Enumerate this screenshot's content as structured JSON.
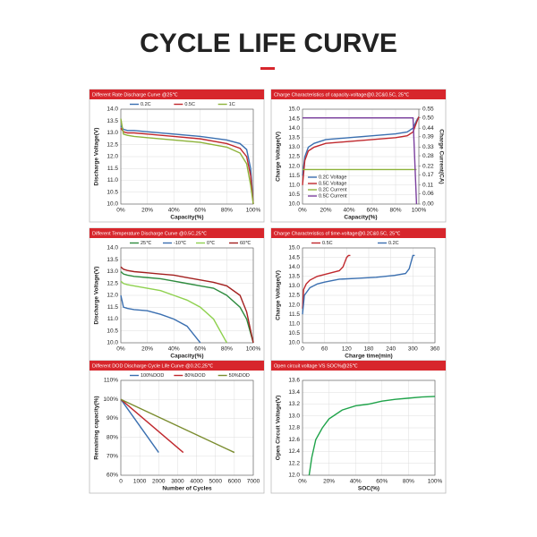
{
  "title": "CYCLE LIFE CURVE",
  "chart_data": [
    {
      "type": "line",
      "title": "Different Rate Discharge Curve @25℃",
      "x_label": "Capacity(%)",
      "y_label": "Discharge Voltage(V)",
      "legend": "top",
      "grid": true,
      "x": [
        0,
        2,
        5,
        10,
        20,
        40,
        60,
        80,
        90,
        95,
        98,
        100
      ],
      "series": [
        {
          "name": "0.2C",
          "color": "#3a6fb0",
          "values": [
            13.3,
            13.15,
            13.1,
            13.1,
            13.05,
            12.95,
            12.85,
            12.7,
            12.55,
            12.3,
            11.5,
            10.0
          ]
        },
        {
          "name": "0.5C",
          "color": "#c0282d",
          "values": [
            13.2,
            13.05,
            13.0,
            13.0,
            12.95,
            12.85,
            12.75,
            12.55,
            12.35,
            12.0,
            11.2,
            10.0
          ]
        },
        {
          "name": "1C",
          "color": "#8db33a",
          "values": [
            13.6,
            12.95,
            12.9,
            12.85,
            12.8,
            12.7,
            12.6,
            12.4,
            12.15,
            11.7,
            10.8,
            10.0
          ]
        }
      ],
      "xlim": [
        0,
        100
      ],
      "xticks": [
        {
          "value": 0,
          "label": "0%"
        },
        {
          "value": 20,
          "label": "20%"
        },
        {
          "value": 40,
          "label": "40%"
        },
        {
          "value": 60,
          "label": "60%"
        },
        {
          "value": 80,
          "label": "80%"
        },
        {
          "value": 100,
          "label": "100%"
        }
      ],
      "ylim": [
        10,
        14
      ],
      "yticks": [
        {
          "value": 10,
          "label": "10.0"
        },
        10.5,
        {
          "value": 11,
          "label": "11.0"
        },
        11.5,
        {
          "value": 12,
          "label": "12.0"
        },
        12.5,
        {
          "value": 13,
          "label": "13.0"
        },
        13.5,
        {
          "value": 14,
          "label": "14.0"
        }
      ]
    },
    {
      "type": "line",
      "title": "Charge  Characteristics of capacity-voltage@0.2C&0.5C, 25℃",
      "x_label": "Capacity(%)",
      "y_label": "Charge Voltage(V)",
      "y2_label": "Charge Current(CA)",
      "legend": "lower left",
      "grid": true,
      "x": [
        0,
        2,
        5,
        10,
        20,
        40,
        60,
        80,
        90,
        95,
        98,
        100
      ],
      "series": [
        {
          "name": "0.2C Voltage",
          "color": "#3a6fb0",
          "values": [
            11.5,
            12.5,
            13.0,
            13.2,
            13.4,
            13.5,
            13.6,
            13.7,
            13.8,
            14.0,
            14.4,
            14.6
          ]
        },
        {
          "name": "0.5C Voltage",
          "color": "#c0282d",
          "values": [
            11.0,
            12.3,
            12.8,
            13.0,
            13.2,
            13.3,
            13.4,
            13.5,
            13.6,
            13.8,
            14.3,
            14.6
          ]
        },
        {
          "name": "0.2C Current",
          "color": "#8db33a",
          "axis": "y2",
          "values": [
            0.2,
            0.2,
            0.2,
            0.2,
            0.2,
            0.2,
            0.2,
            0.2,
            0.2,
            0.2,
            0.2,
            null
          ]
        },
        {
          "name": "0.5C Current",
          "color": "#7b3f9e",
          "axis": "y2",
          "values": [
            0.5,
            0.5,
            0.5,
            0.5,
            0.5,
            0.5,
            0.5,
            0.5,
            0.5,
            0.5,
            0.0,
            null
          ]
        }
      ],
      "xlim": [
        0,
        100
      ],
      "xticks": [
        {
          "value": 0,
          "label": "0%"
        },
        {
          "value": 20,
          "label": "20%"
        },
        {
          "value": 40,
          "label": "40%"
        },
        {
          "value": 60,
          "label": "60%"
        },
        {
          "value": 80,
          "label": "80%"
        },
        {
          "value": 100,
          "label": "100%"
        }
      ],
      "ylim": [
        10,
        15
      ],
      "yticks": [
        {
          "value": 10,
          "label": "10.0"
        },
        10.5,
        {
          "value": 11,
          "label": "11.0"
        },
        11.5,
        {
          "value": 12,
          "label": "12.0"
        },
        12.5,
        {
          "value": 13,
          "label": "13.0"
        },
        13.5,
        {
          "value": 14,
          "label": "14.0"
        },
        14.5,
        {
          "value": 15,
          "label": "15.0"
        }
      ],
      "y2lim": [
        0,
        0.55
      ],
      "y2ticks": [
        {
          "value": 0,
          "label": "0.00"
        },
        0.06,
        0.11,
        0.17,
        0.22,
        0.28,
        0.33,
        0.39,
        0.44,
        {
          "value": 0.5,
          "label": "0.50"
        },
        0.55
      ]
    },
    {
      "type": "line",
      "title": "Different Temperature Discharge Curve @0.5C,25℃",
      "x_label": "Capacity(%)",
      "y_label": "Discharge Voltage(V)",
      "legend": "top",
      "grid": true,
      "x": [
        0,
        2,
        5,
        10,
        20,
        30,
        40,
        50,
        60,
        70,
        80,
        90,
        95,
        100
      ],
      "series": [
        {
          "name": "25℃",
          "color": "#2e8b3e",
          "values": [
            13.0,
            12.9,
            12.85,
            12.8,
            12.75,
            12.7,
            12.6,
            12.5,
            12.4,
            12.3,
            12.0,
            11.5,
            11.0,
            10.0
          ]
        },
        {
          "name": "-10℃",
          "color": "#3a6fb0",
          "values": [
            12.0,
            11.5,
            11.45,
            11.4,
            11.35,
            11.2,
            11.0,
            10.7,
            10.0,
            null,
            null,
            null,
            null,
            null
          ]
        },
        {
          "name": "0℃",
          "color": "#8fd14f",
          "values": [
            12.6,
            12.5,
            12.45,
            12.4,
            12.3,
            12.2,
            12.0,
            11.8,
            11.5,
            11.0,
            10.0,
            null,
            null,
            null
          ]
        },
        {
          "name": "60℃",
          "color": "#a3201f",
          "values": [
            13.2,
            13.1,
            13.05,
            13.0,
            12.95,
            12.9,
            12.85,
            12.75,
            12.65,
            12.55,
            12.4,
            12.0,
            11.3,
            10.0
          ]
        }
      ],
      "xlim": [
        0,
        100
      ],
      "xticks": [
        {
          "value": 0,
          "label": "0%"
        },
        {
          "value": 20,
          "label": "20%"
        },
        {
          "value": 40,
          "label": "40%"
        },
        {
          "value": 60,
          "label": "60%"
        },
        {
          "value": 80,
          "label": "80%"
        },
        {
          "value": 100,
          "label": "100%"
        }
      ],
      "ylim": [
        10,
        14
      ],
      "yticks": [
        {
          "value": 10,
          "label": "10.0"
        },
        10.5,
        {
          "value": 11,
          "label": "11.0"
        },
        11.5,
        {
          "value": 12,
          "label": "12.0"
        },
        12.5,
        {
          "value": 13,
          "label": "13.0"
        },
        13.5,
        {
          "value": 14,
          "label": "14.0"
        }
      ]
    },
    {
      "type": "line",
      "title": "Charge  Characteristics of time-voltage@0.2C&0.5C, 25℃",
      "x_label": "Charge time(min)",
      "y_label": "Charge Voltage(V)",
      "legend": "top",
      "grid": true,
      "series": [
        {
          "name": "0.5C",
          "color": "#c0282d",
          "x": [
            0,
            3,
            10,
            20,
            40,
            60,
            80,
            100,
            110,
            120,
            125,
            130
          ],
          "values": [
            11.8,
            12.8,
            13.1,
            13.3,
            13.5,
            13.6,
            13.7,
            13.8,
            14.0,
            14.5,
            14.6,
            14.6
          ]
        },
        {
          "name": "0.2C",
          "color": "#3a6fb0",
          "x": [
            0,
            5,
            20,
            40,
            60,
            100,
            150,
            200,
            250,
            280,
            290,
            300,
            305
          ],
          "values": [
            11.5,
            12.5,
            12.9,
            13.1,
            13.2,
            13.35,
            13.4,
            13.45,
            13.55,
            13.65,
            13.9,
            14.6,
            14.6
          ]
        }
      ],
      "xlim": [
        0,
        360
      ],
      "xticks": [
        0,
        60,
        120,
        180,
        240,
        300,
        360
      ],
      "ylim": [
        10,
        15
      ],
      "yticks": [
        {
          "value": 10,
          "label": "10.0"
        },
        10.5,
        {
          "value": 11,
          "label": "11.0"
        },
        11.5,
        {
          "value": 12,
          "label": "12.0"
        },
        12.5,
        {
          "value": 13,
          "label": "13.0"
        },
        13.5,
        {
          "value": 14,
          "label": "14.0"
        },
        14.5,
        {
          "value": 15,
          "label": "15.0"
        }
      ]
    },
    {
      "type": "line",
      "title": "Different DOD Discharge Cycle Life Curve @0.2C,25℃",
      "x_label": "Number of Cycles",
      "y_label": "Remaining capacity(%)",
      "legend": "top",
      "grid": true,
      "series": [
        {
          "name": "100%DOD",
          "color": "#3a6fb0",
          "x": [
            0,
            2000
          ],
          "values": [
            100,
            72
          ]
        },
        {
          "name": "80%DOD",
          "color": "#c0282d",
          "x": [
            0,
            3300
          ],
          "values": [
            100,
            72
          ]
        },
        {
          "name": "50%DOD",
          "color": "#7a8c2e",
          "x": [
            0,
            6000
          ],
          "values": [
            100,
            72
          ]
        }
      ],
      "xlim": [
        0,
        7000
      ],
      "xticks": [
        0,
        1000,
        2000,
        3000,
        4000,
        5000,
        6000,
        7000
      ],
      "ylim": [
        60,
        110
      ],
      "yticks": [
        {
          "value": 60,
          "label": "60%"
        },
        {
          "value": 70,
          "label": "70%"
        },
        {
          "value": 80,
          "label": "80%"
        },
        {
          "value": 90,
          "label": "90%"
        },
        {
          "value": 100,
          "label": "100%"
        },
        {
          "value": 110,
          "label": "110%"
        }
      ]
    },
    {
      "type": "line",
      "title": "Open circuit voltage VS SOC%@25℃",
      "x_label": "SOC(%)",
      "y_label": "Open Circuit Voltage(V)",
      "grid": true,
      "x": [
        5,
        7,
        10,
        15,
        20,
        30,
        40,
        50,
        60,
        70,
        80,
        90,
        100
      ],
      "series": [
        {
          "color": "#1fa34a",
          "values": [
            12.0,
            12.3,
            12.6,
            12.8,
            12.95,
            13.1,
            13.17,
            13.2,
            13.25,
            13.28,
            13.3,
            13.32,
            13.33
          ]
        }
      ],
      "xlim": [
        0,
        100
      ],
      "xticks": [
        {
          "value": 0,
          "label": "0%"
        },
        {
          "value": 20,
          "label": "20%"
        },
        {
          "value": 40,
          "label": "40%"
        },
        {
          "value": 60,
          "label": "60%"
        },
        {
          "value": 80,
          "label": "80%"
        },
        {
          "value": 100,
          "label": "100%"
        }
      ],
      "ylim": [
        12,
        13.6
      ],
      "yticks": [
        {
          "value": 12,
          "label": "12.0"
        },
        12.2,
        12.4,
        12.6,
        12.8,
        {
          "value": 13,
          "label": "13.0"
        },
        13.2,
        13.4,
        13.6
      ]
    }
  ]
}
